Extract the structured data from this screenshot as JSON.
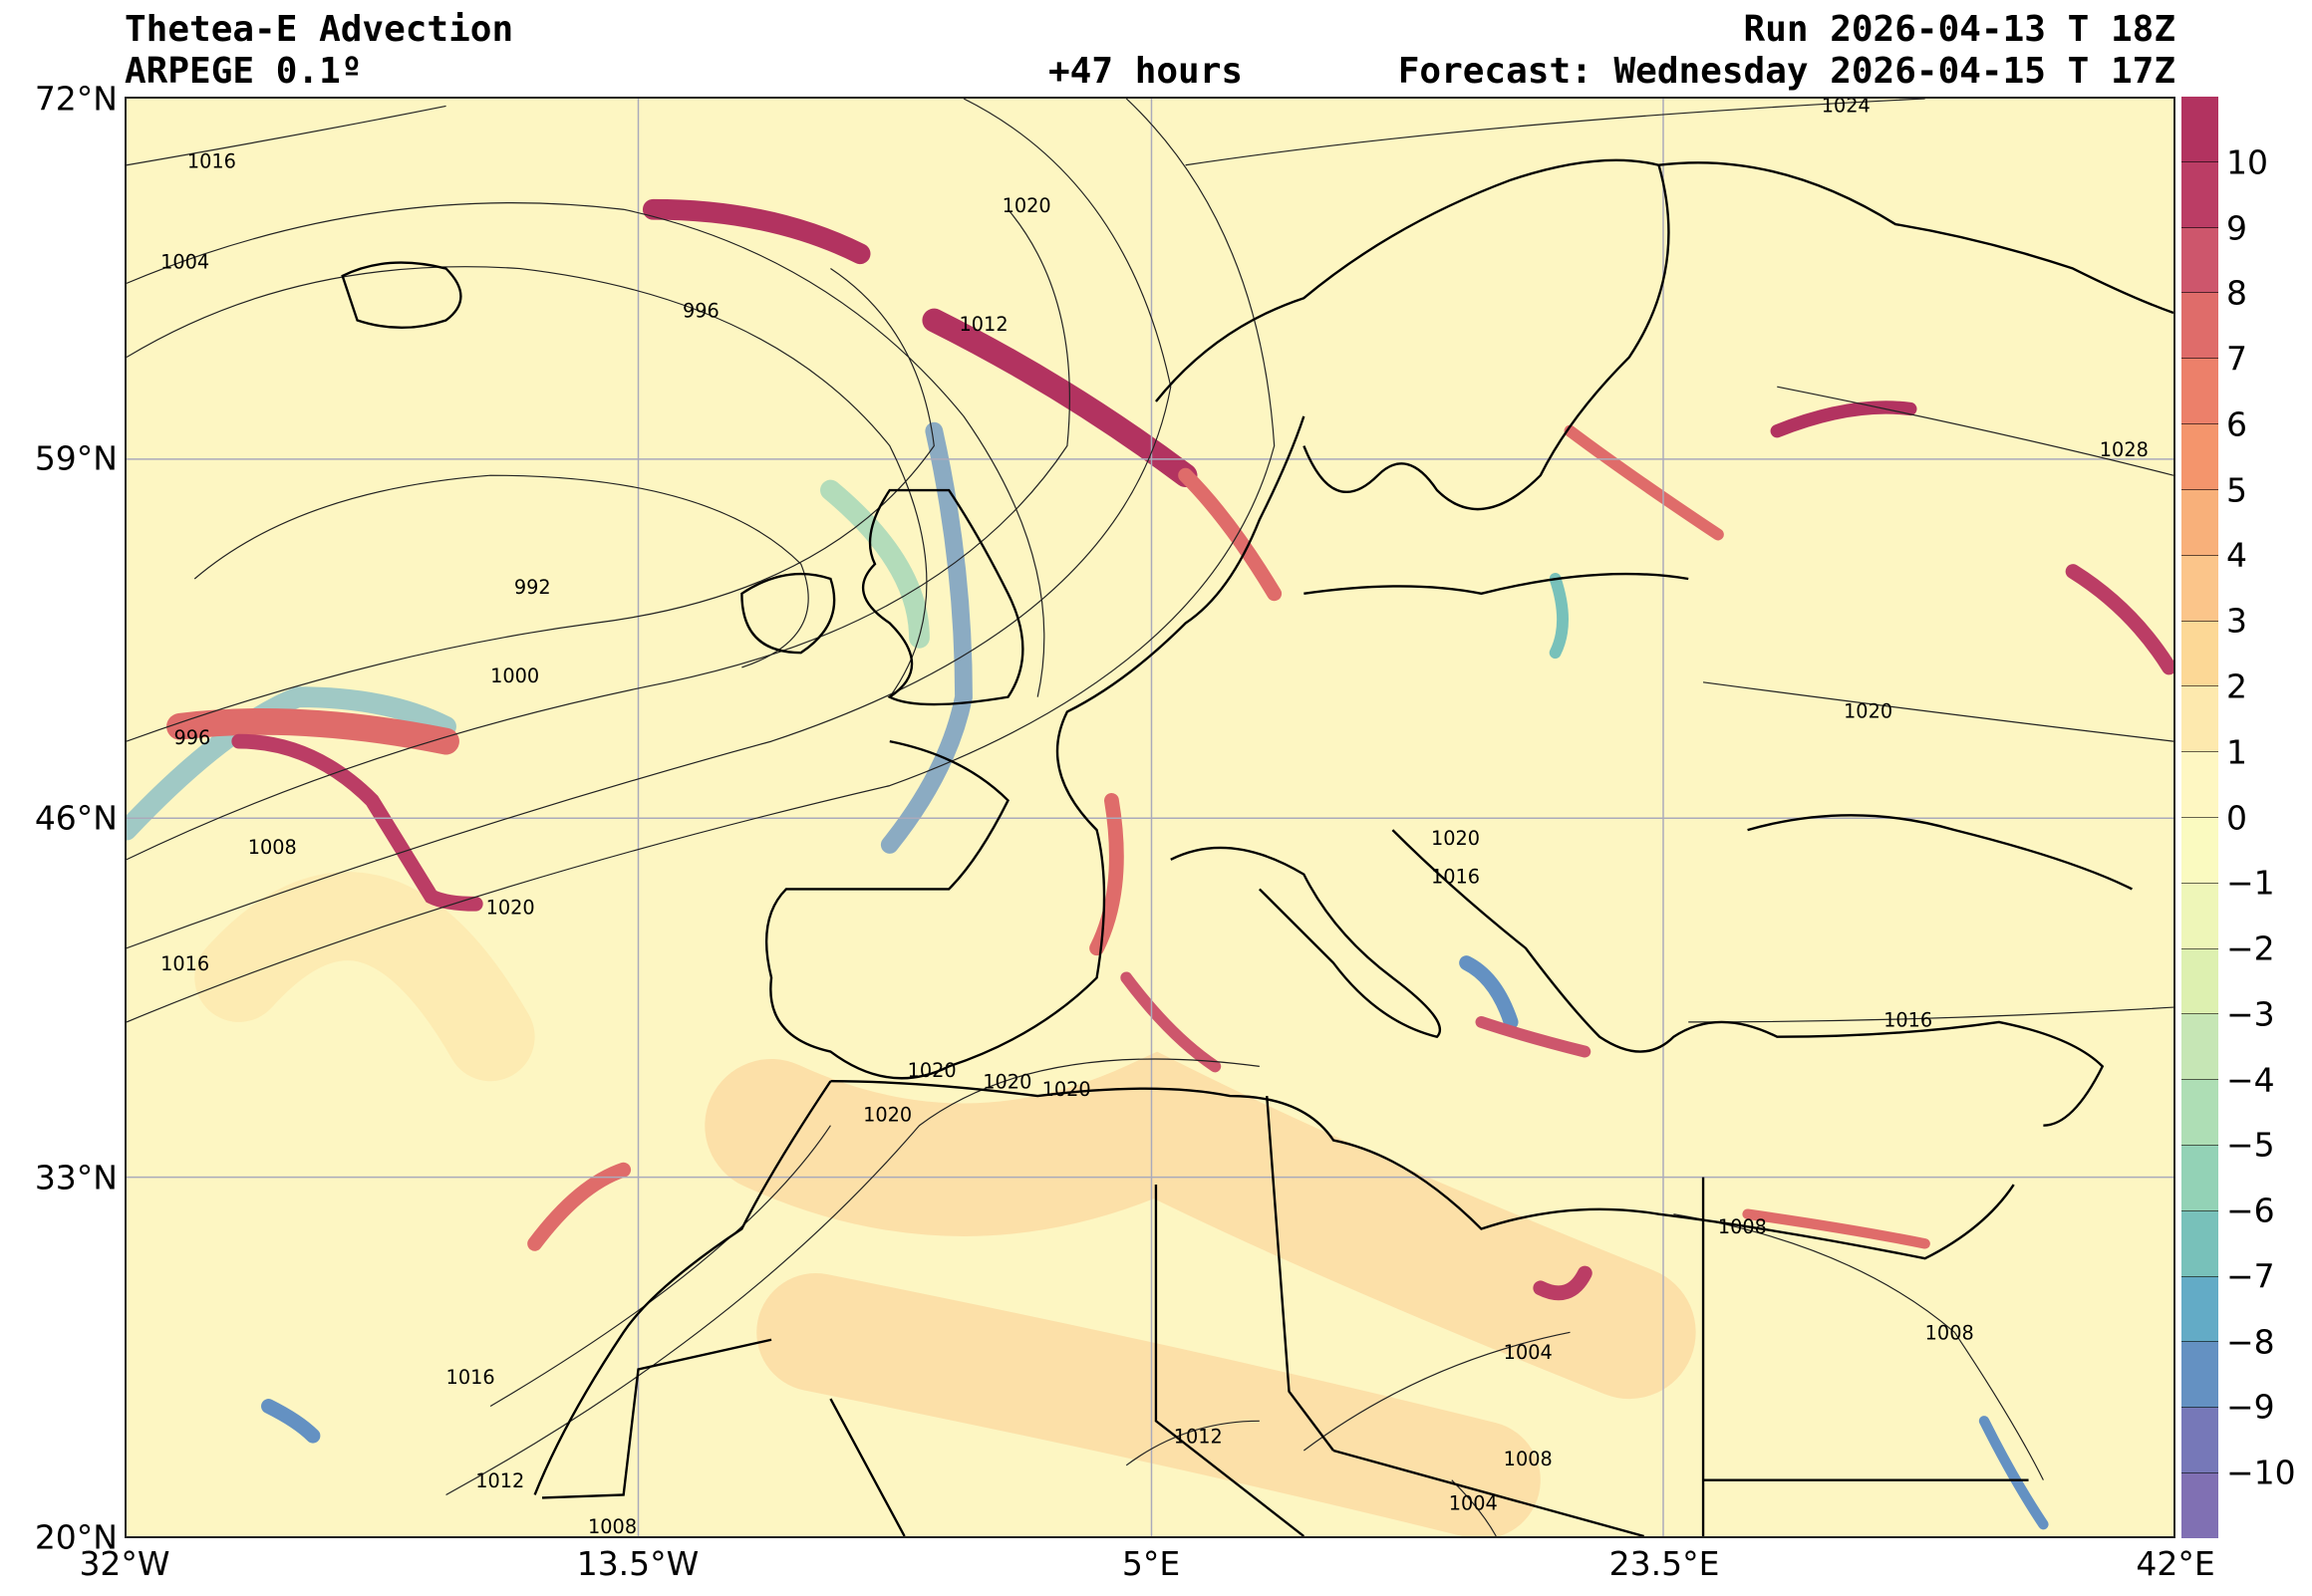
{
  "header": {
    "title": "Thetea-E Advection",
    "model": "ARPEGE 0.1º",
    "run": "Run 2026-04-13 T 18Z",
    "lead": "+47 hours",
    "forecast": "Forecast: Wednesday 2026-04-15 T 17Z"
  },
  "axes": {
    "lat_labels": [
      "72°N",
      "59°N",
      "46°N",
      "33°N",
      "20°N"
    ],
    "lon_labels": [
      "32°W",
      "13.5°W",
      "5°E",
      "23.5°E",
      "42°E"
    ]
  },
  "colorbar": {
    "ticks": [
      "10",
      "9",
      "8",
      "7",
      "6",
      "5",
      "4",
      "3",
      "2",
      "1",
      "0",
      "−1",
      "−2",
      "−3",
      "−4",
      "−5",
      "−6",
      "−7",
      "−8",
      "−9",
      "−10"
    ],
    "colors": [
      "#b23360",
      "#bb3d65",
      "#cd566c",
      "#df6c6a",
      "#ec806a",
      "#f4956c",
      "#f8b07a",
      "#fbc58a",
      "#fcd896",
      "#fde9ae",
      "#fef7c2",
      "#fafac0",
      "#eef6b8",
      "#ddf0b0",
      "#c6e6b5",
      "#aedeb5",
      "#93d2b6",
      "#78c1ba",
      "#63abc6",
      "#6491c2",
      "#7678b8",
      "#8070b3"
    ]
  },
  "map": {
    "isobar_labels": [
      "1016",
      "1004",
      "996",
      "1012",
      "1020",
      "992",
      "1000",
      "996",
      "1008",
      "1020",
      "1016",
      "1024",
      "1028",
      "1020",
      "1020",
      "1016",
      "1020",
      "1020",
      "1020",
      "1020",
      "1016",
      "1008",
      "1008",
      "1004",
      "1016",
      "1012",
      "1012",
      "1008",
      "1004",
      "1008"
    ]
  }
}
